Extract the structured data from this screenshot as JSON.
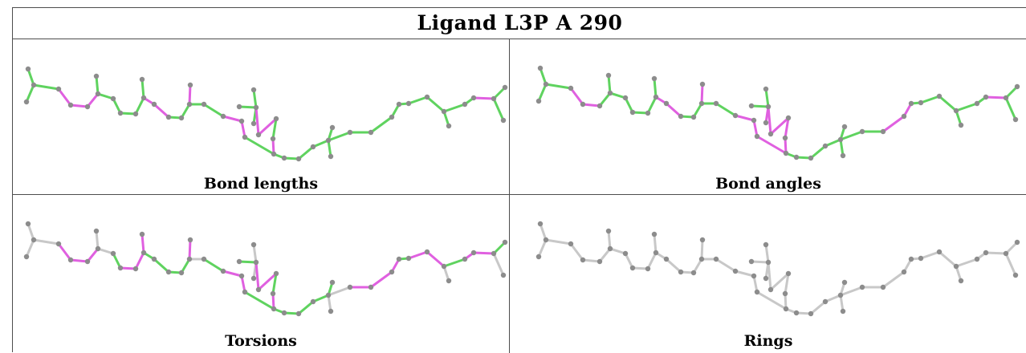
{
  "title": "Ligand L3P A 290",
  "panels": [
    {
      "caption": "Bond lengths",
      "scheme": "lengths"
    },
    {
      "caption": "Bond angles",
      "scheme": "angles"
    },
    {
      "caption": "Torsions",
      "scheme": "torsions"
    },
    {
      "caption": "Rings",
      "scheme": "rings"
    }
  ],
  "colors": {
    "ok_bond": "#5fd35f",
    "outlier_bond": "#e060e0",
    "neutral_bond": "#c8c8c8",
    "atom": "#8c8c8c",
    "border": "#4d4d4d"
  }
}
